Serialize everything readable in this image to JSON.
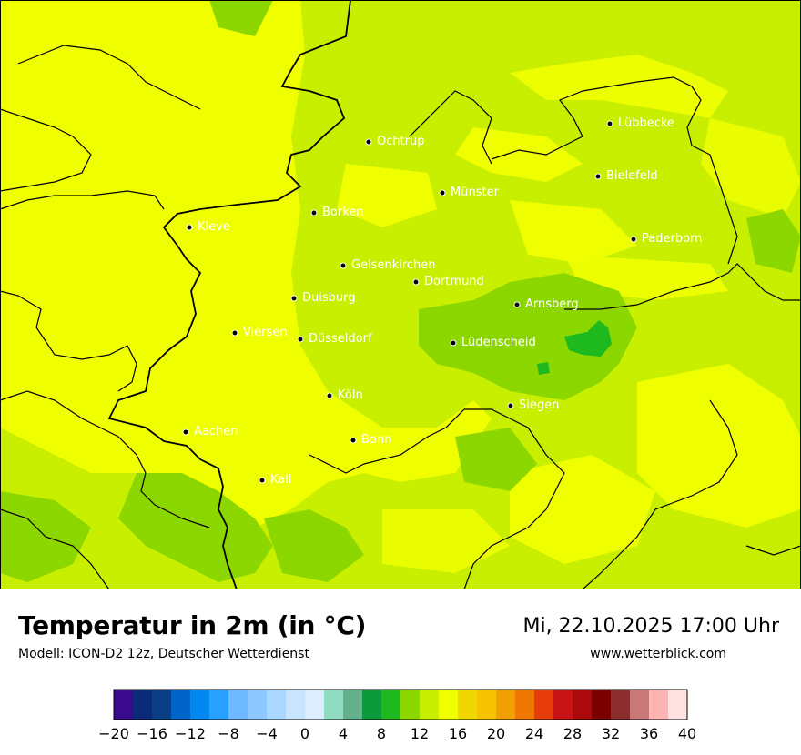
{
  "title": "Temperatur in 2m (in °C)",
  "model": "Modell: ICON-D2 12z, Deutscher Wetterdienst",
  "datetime": "Mi, 22.10.2025 17:00 Uhr",
  "website": "www.wetterblick.com",
  "cities": [
    {
      "name": "Lübbecke"
    },
    {
      "name": "Ochtrup"
    },
    {
      "name": "Bielefeld"
    },
    {
      "name": "Münster"
    },
    {
      "name": "Borken"
    },
    {
      "name": "Kleve"
    },
    {
      "name": "Paderborn"
    },
    {
      "name": "Gelsenkirchen"
    },
    {
      "name": "Dortmund"
    },
    {
      "name": "Duisburg"
    },
    {
      "name": "Arnsberg"
    },
    {
      "name": "Viersen"
    },
    {
      "name": "Düsseldorf"
    },
    {
      "name": "Lüdenscheid"
    },
    {
      "name": "Köln"
    },
    {
      "name": "Siegen"
    },
    {
      "name": "Aachen"
    },
    {
      "name": "Bonn"
    },
    {
      "name": "Kall"
    }
  ],
  "legend": {
    "min": -20,
    "max": 40,
    "step": 2,
    "tick_labels": [
      "−20",
      "−16",
      "−12",
      "−8",
      "−4",
      "0",
      "4",
      "8",
      "12",
      "16",
      "20",
      "24",
      "28",
      "32",
      "36",
      "40"
    ],
    "colors": [
      "#3a0a8c",
      "#0b2a78",
      "#0b3f85",
      "#0064c8",
      "#0087f0",
      "#28a0ff",
      "#6eb9ff",
      "#8cc8ff",
      "#aad7ff",
      "#c8e4ff",
      "#dcedff",
      "#90dcc0",
      "#64b08c",
      "#0a9a3c",
      "#1eb91e",
      "#8cd700",
      "#c8ef00",
      "#f0ff00",
      "#f0d700",
      "#f5c300",
      "#f0a000",
      "#f07800",
      "#e63c0a",
      "#c81414",
      "#aa0a0a",
      "#7d0000",
      "#8c2d2d",
      "#c87878",
      "#ffb4b4",
      "#ffe1e1"
    ]
  },
  "map_colors": {
    "yellow": "#f0ff00",
    "yellow_green": "#c8ef00",
    "green": "#8cd700",
    "dark_green": "#1eb91e"
  }
}
